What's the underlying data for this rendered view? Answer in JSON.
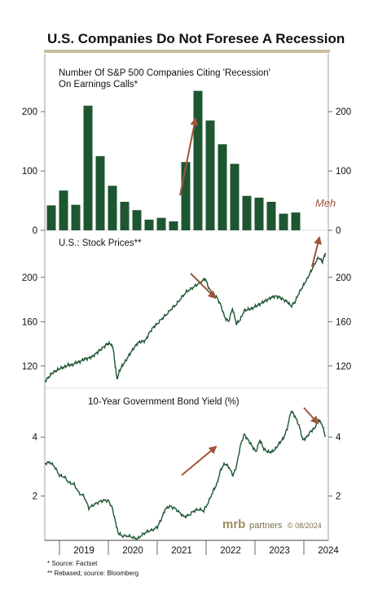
{
  "header": {
    "title": "U.S. Companies Do Not Foresee A Recession"
  },
  "colors": {
    "series": "#1d5631",
    "arrow": "#a0553a",
    "rule": "#c9bfa0",
    "brand": "#9a8c5f"
  },
  "chart_data": [
    {
      "type": "bar",
      "title": "Number Of S&P 500 Companies Citing 'Recession' On Earnings Calls*",
      "title_lines": [
        "Number Of S&P 500 Companies Citing 'Recession'",
        "On Earnings Calls*"
      ],
      "x_start": 2018.7,
      "x_end": 2024.5,
      "bar_step": 0.25,
      "values": [
        42,
        67,
        43,
        210,
        125,
        75,
        48,
        34,
        18,
        21,
        15,
        115,
        235,
        185,
        145,
        112,
        58,
        55,
        48,
        28,
        30
      ],
      "ylim": [
        0,
        240
      ],
      "yticks": [
        "0",
        "100",
        "200"
      ],
      "ytick_values": [
        0,
        100,
        200
      ],
      "annotation": "Meh"
    },
    {
      "type": "line",
      "title": "U.S.: Stock Prices**",
      "x_start": 2018.7,
      "x_end": 2024.5,
      "x": [
        2018.7,
        2018.78,
        2018.86,
        2018.94,
        2019.02,
        2019.1,
        2019.18,
        2019.26,
        2019.34,
        2019.42,
        2019.5,
        2019.58,
        2019.66,
        2019.74,
        2019.82,
        2019.9,
        2019.98,
        2020.05,
        2020.1,
        2020.14,
        2020.18,
        2020.22,
        2020.28,
        2020.36,
        2020.44,
        2020.52,
        2020.6,
        2020.68,
        2020.76,
        2020.84,
        2020.92,
        2021.0,
        2021.1,
        2021.2,
        2021.3,
        2021.4,
        2021.5,
        2021.6,
        2021.7,
        2021.8,
        2021.9,
        2021.98,
        2022.06,
        2022.14,
        2022.22,
        2022.3,
        2022.38,
        2022.46,
        2022.54,
        2022.62,
        2022.7,
        2022.78,
        2022.86,
        2022.94,
        2023.02,
        2023.1,
        2023.18,
        2023.26,
        2023.34,
        2023.42,
        2023.5,
        2023.58,
        2023.66,
        2023.74,
        2023.82,
        2023.9,
        2023.98,
        2024.06,
        2024.14,
        2024.22,
        2024.3,
        2024.38,
        2024.44
      ],
      "values": [
        106,
        110,
        114,
        116,
        118,
        119,
        121,
        121,
        123,
        124,
        126,
        127,
        128,
        131,
        134,
        137,
        140,
        140,
        136,
        120,
        108,
        115,
        120,
        125,
        131,
        136,
        141,
        142,
        143,
        150,
        155,
        158,
        163,
        167,
        172,
        176,
        182,
        187,
        190,
        193,
        196,
        199,
        190,
        185,
        182,
        175,
        164,
        160,
        172,
        158,
        162,
        170,
        171,
        172,
        174,
        176,
        178,
        180,
        182,
        183,
        182,
        180,
        178,
        174,
        178,
        186,
        192,
        198,
        205,
        212,
        218,
        214,
        222
      ],
      "ylim": [
        100,
        230
      ],
      "yticks": [
        "120",
        "160",
        "200"
      ],
      "ytick_values": [
        120,
        160,
        200
      ]
    },
    {
      "type": "line",
      "title": "10-Year Government Bond Yield (%)",
      "x_start": 2018.7,
      "x_end": 2024.5,
      "x": [
        2018.7,
        2018.8,
        2018.9,
        2019.0,
        2019.1,
        2019.2,
        2019.3,
        2019.4,
        2019.5,
        2019.6,
        2019.7,
        2019.8,
        2019.9,
        2020.0,
        2020.08,
        2020.15,
        2020.2,
        2020.28,
        2020.4,
        2020.5,
        2020.6,
        2020.7,
        2020.8,
        2020.9,
        2021.0,
        2021.08,
        2021.16,
        2021.25,
        2021.35,
        2021.45,
        2021.55,
        2021.65,
        2021.75,
        2021.85,
        2021.95,
        2022.05,
        2022.15,
        2022.22,
        2022.3,
        2022.38,
        2022.46,
        2022.55,
        2022.62,
        2022.7,
        2022.78,
        2022.86,
        2022.94,
        2023.02,
        2023.1,
        2023.18,
        2023.26,
        2023.34,
        2023.42,
        2023.5,
        2023.58,
        2023.66,
        2023.74,
        2023.82,
        2023.9,
        2023.98,
        2024.06,
        2024.14,
        2024.22,
        2024.3,
        2024.38,
        2024.44
      ],
      "values": [
        3.1,
        3.15,
        3.0,
        2.7,
        2.65,
        2.45,
        2.4,
        2.1,
        2.0,
        1.6,
        1.7,
        1.8,
        1.85,
        1.85,
        1.6,
        1.1,
        0.75,
        0.65,
        0.65,
        0.6,
        0.55,
        0.7,
        0.8,
        0.85,
        0.95,
        1.2,
        1.55,
        1.65,
        1.6,
        1.45,
        1.3,
        1.35,
        1.5,
        1.55,
        1.5,
        1.8,
        2.2,
        2.4,
        2.9,
        3.1,
        3.0,
        2.7,
        3.0,
        3.7,
        4.1,
        3.9,
        3.7,
        3.5,
        3.9,
        3.6,
        3.5,
        3.5,
        3.6,
        3.8,
        3.95,
        4.3,
        4.9,
        4.7,
        4.4,
        3.9,
        4.0,
        4.2,
        4.3,
        4.6,
        4.4,
        4.0
      ],
      "ylim": [
        0.5,
        5.3
      ],
      "yticks": [
        "2",
        "4"
      ],
      "ytick_values": [
        2,
        4
      ]
    }
  ],
  "xaxis": {
    "ticks": [
      "2019",
      "2020",
      "2021",
      "2022",
      "2023",
      "2024"
    ],
    "tick_values": [
      2019,
      2020,
      2021,
      2022,
      2023,
      2024
    ]
  },
  "branding": {
    "logo": "mrb",
    "name": "partners",
    "date": "© 08/2024"
  },
  "footnotes": [
    "*  Source: Factset",
    "** Rebased; source: Bloomberg"
  ]
}
